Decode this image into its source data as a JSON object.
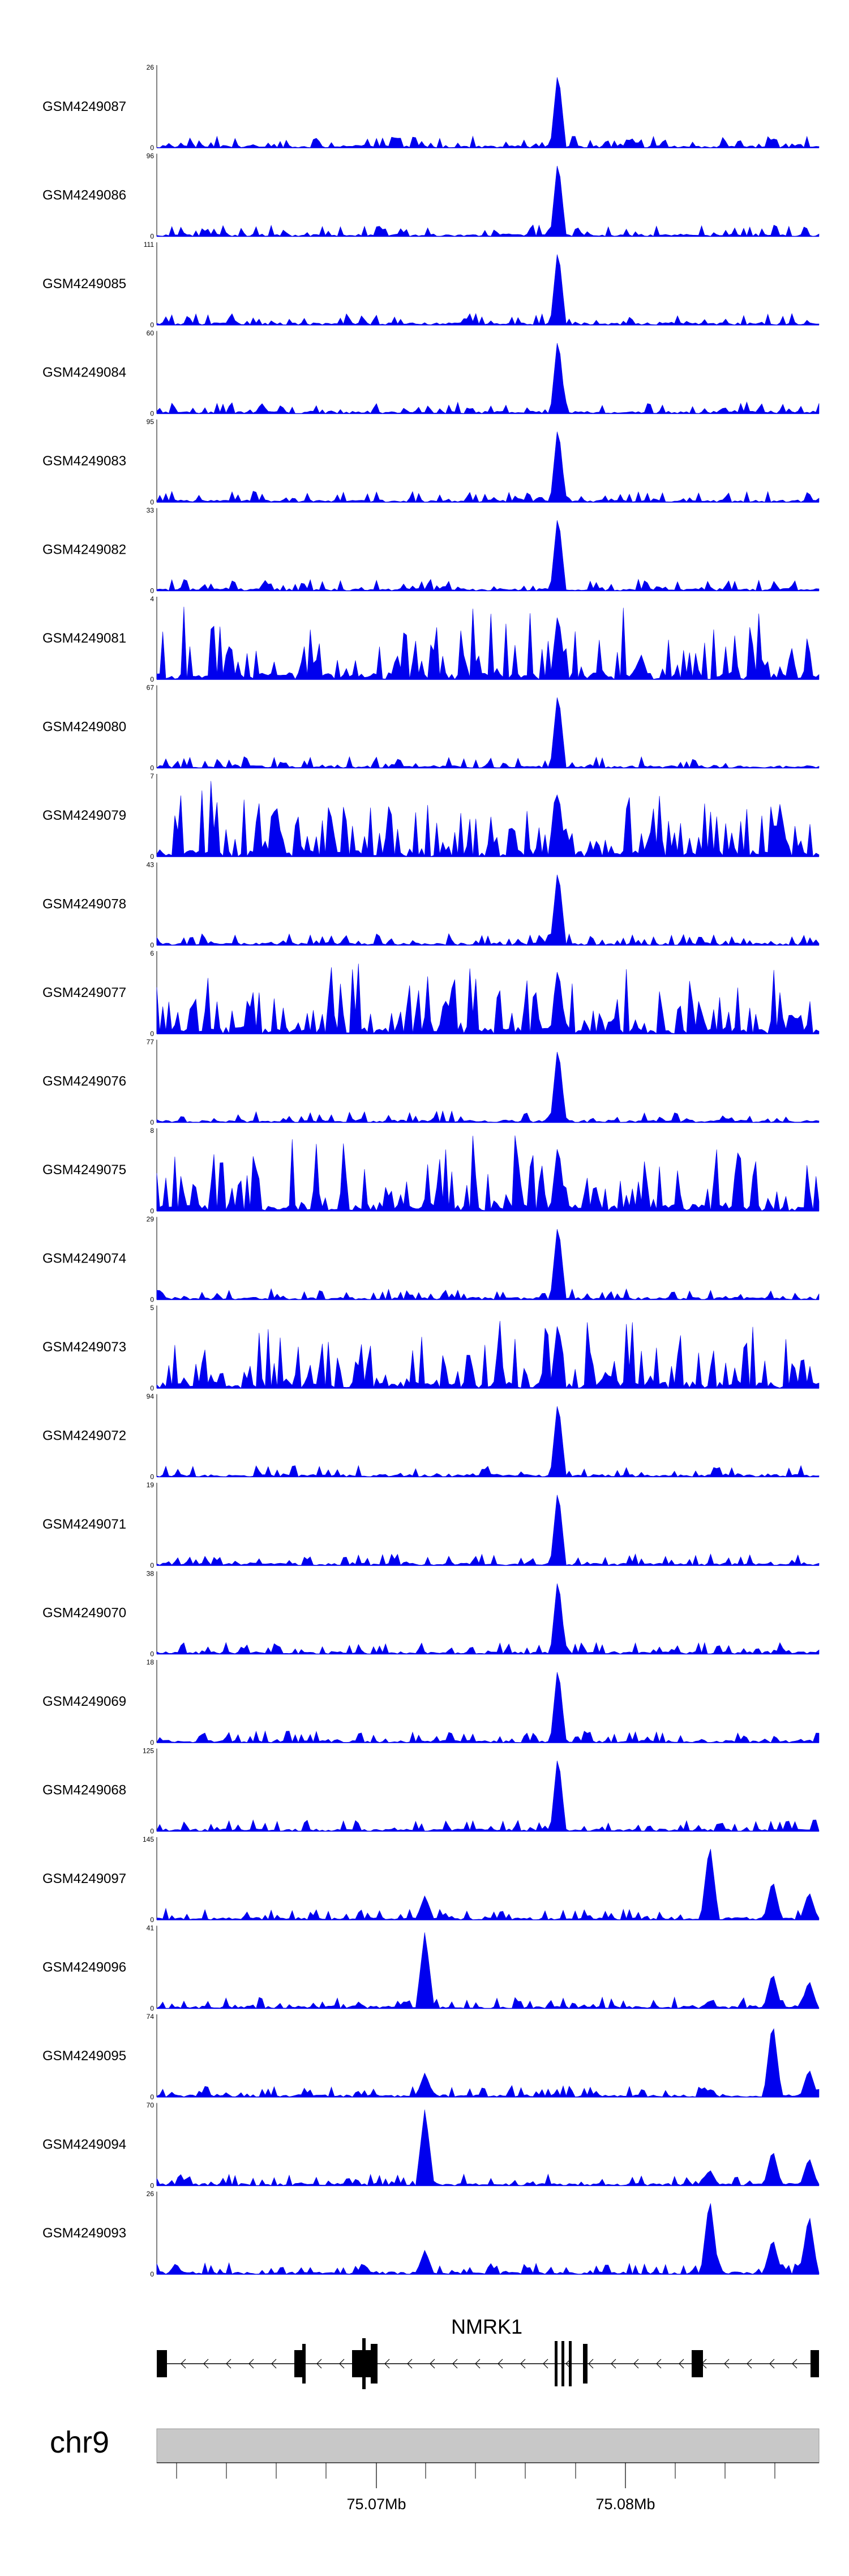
{
  "chart_data": {
    "type": "area",
    "tracks": [
      {
        "name": "GSM4249087",
        "ymax": "26"
      },
      {
        "name": "GSM4249086",
        "ymax": "96"
      },
      {
        "name": "GSM4249085",
        "ymax": "111"
      },
      {
        "name": "GSM4249084",
        "ymax": "60"
      },
      {
        "name": "GSM4249083",
        "ymax": "95"
      },
      {
        "name": "GSM4249082",
        "ymax": "33"
      },
      {
        "name": "GSM4249081",
        "ymax": "4"
      },
      {
        "name": "GSM4249080",
        "ymax": "67"
      },
      {
        "name": "GSM4249079",
        "ymax": "7"
      },
      {
        "name": "GSM4249078",
        "ymax": "43"
      },
      {
        "name": "GSM4249077",
        "ymax": "6"
      },
      {
        "name": "GSM4249076",
        "ymax": "77"
      },
      {
        "name": "GSM4249075",
        "ymax": "8"
      },
      {
        "name": "GSM4249074",
        "ymax": "29"
      },
      {
        "name": "GSM4249073",
        "ymax": "5"
      },
      {
        "name": "GSM4249072",
        "ymax": "94"
      },
      {
        "name": "GSM4249071",
        "ymax": "19"
      },
      {
        "name": "GSM4249070",
        "ymax": "38"
      },
      {
        "name": "GSM4249069",
        "ymax": "18"
      },
      {
        "name": "GSM4249068",
        "ymax": "125"
      },
      {
        "name": "GSM4249097",
        "ymax": "145"
      },
      {
        "name": "GSM4249096",
        "ymax": "41"
      },
      {
        "name": "GSM4249095",
        "ymax": "74"
      },
      {
        "name": "GSM4249094",
        "ymax": "70"
      },
      {
        "name": "GSM4249093",
        "ymax": "26"
      }
    ],
    "ymin_label": "0",
    "gene": "NMRK1",
    "chromosome": "chr9",
    "x_ticks": [
      "75.07Mb",
      "75.08Mb"
    ],
    "colors": {
      "signal": "#0000ee",
      "chrom_bar": "#c8c8c8",
      "gene": "#000000"
    }
  }
}
